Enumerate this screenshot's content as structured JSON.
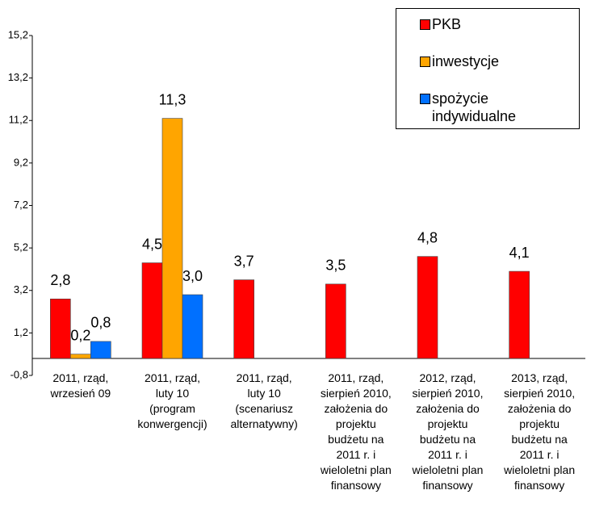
{
  "chart_data": {
    "type": "bar",
    "categories": [
      "2011, rząd,\nwrzesień 09",
      "2011, rząd,\nluty 10\n(program\nkonwergencji)",
      "2011, rząd,\nluty 10\n(scenariusz\nalternatywny)",
      "2011, rząd,\nsierpień 2010,\nzałożenia do\nprojektu\nbudżetu na\n2011 r. i\nwieloletni plan\nfinansowy",
      "2012, rząd,\nsierpień 2010,\nzałożenia do\nprojektu\nbudżetu na\n2011 r. i\nwieloletni plan\nfinansowy",
      "2013, rząd,\nsierpień 2010,\nzałożenia do\nprojektu\nbudżetu na\n2011 r. i\nwieloletni plan\nfinansowy"
    ],
    "series": [
      {
        "name": "PKB",
        "color": "#ff0000",
        "values": [
          2.8,
          4.5,
          3.7,
          3.5,
          4.8,
          4.1
        ],
        "value_labels": [
          "2,8",
          "4,5",
          "3,7",
          "3,5",
          "4,8",
          "4,1"
        ]
      },
      {
        "name": "inwestycje",
        "color": "#ffa500",
        "values": [
          0.2,
          11.3,
          null,
          null,
          null,
          null
        ],
        "value_labels": [
          "0,2",
          "11,3",
          null,
          null,
          null,
          null
        ]
      },
      {
        "name": "spożycie indywidualne",
        "color": "#0070ff",
        "values": [
          0.8,
          3.0,
          null,
          null,
          null,
          null
        ],
        "value_labels": [
          "0,8",
          "3,0",
          null,
          null,
          null,
          null
        ]
      }
    ],
    "ylim": [
      -0.8,
      15.2
    ],
    "yticks": [
      {
        "value": -0.8,
        "label": "-0,8"
      },
      {
        "value": 1.2,
        "label": "1,2"
      },
      {
        "value": 3.2,
        "label": "3,2"
      },
      {
        "value": 5.2,
        "label": "5,2"
      },
      {
        "value": 7.2,
        "label": "7,2"
      },
      {
        "value": 9.2,
        "label": "9,2"
      },
      {
        "value": 11.2,
        "label": "11,2"
      },
      {
        "value": 13.2,
        "label": "13,2"
      },
      {
        "value": 15.2,
        "label": "15,2"
      }
    ],
    "grid": false,
    "legend": "top-right"
  }
}
